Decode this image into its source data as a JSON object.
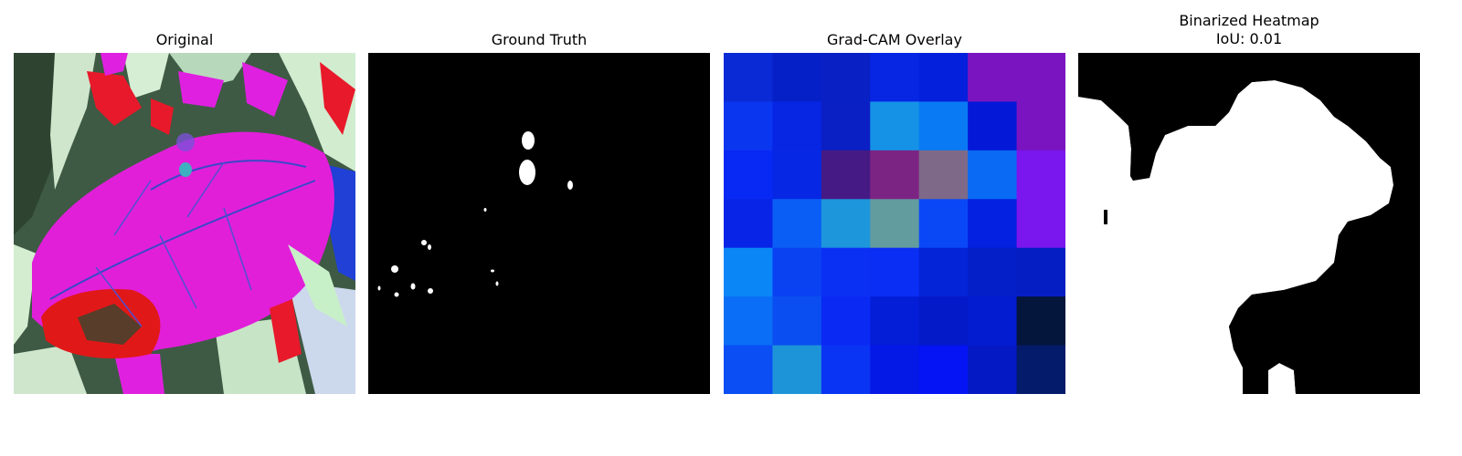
{
  "panels": [
    {
      "title": "Original"
    },
    {
      "title": "Ground Truth"
    },
    {
      "title": "Grad-CAM Overlay"
    },
    {
      "title": "Binarized Heatmap",
      "subtitle": "IoU: 0.01"
    }
  ],
  "colors": {
    "background": "#ffffff",
    "mask_foreground": "#ffffff",
    "mask_background": "#000000"
  },
  "gradcam_grid": [
    [
      "#0a2ad6",
      "#0620c8",
      "#0820c4",
      "#0626e4",
      "#0420dc",
      "#7a14c0",
      "#7a14c0"
    ],
    [
      "#0a36f0",
      "#0626e4",
      "#0a20c4",
      "#1592e6",
      "#0a7af4",
      "#0418d8",
      "#7a14c0"
    ],
    [
      "#0828f4",
      "#0628e4",
      "#461a84",
      "#7c2484",
      "#7e6a88",
      "#0a6af4",
      "#7a16ee"
    ],
    [
      "#0824e6",
      "#0a5ef6",
      "#1d96dc",
      "#639c9e",
      "#0a48f6",
      "#0420e0",
      "#7a16ee"
    ],
    [
      "#0a86f6",
      "#0a42f2",
      "#0a30f4",
      "#0a2ef4",
      "#0424d8",
      "#041ec8",
      "#041ec4"
    ],
    [
      "#0a6ef6",
      "#0a4ef2",
      "#0a2af4",
      "#041ed8",
      "#041ac8",
      "#041cd0",
      "#04163c"
    ],
    [
      "#0a4ef4",
      "#1e94d8",
      "#0a34f4",
      "#0418e6",
      "#0414f4",
      "#0418c4",
      "#041a6a"
    ]
  ]
}
